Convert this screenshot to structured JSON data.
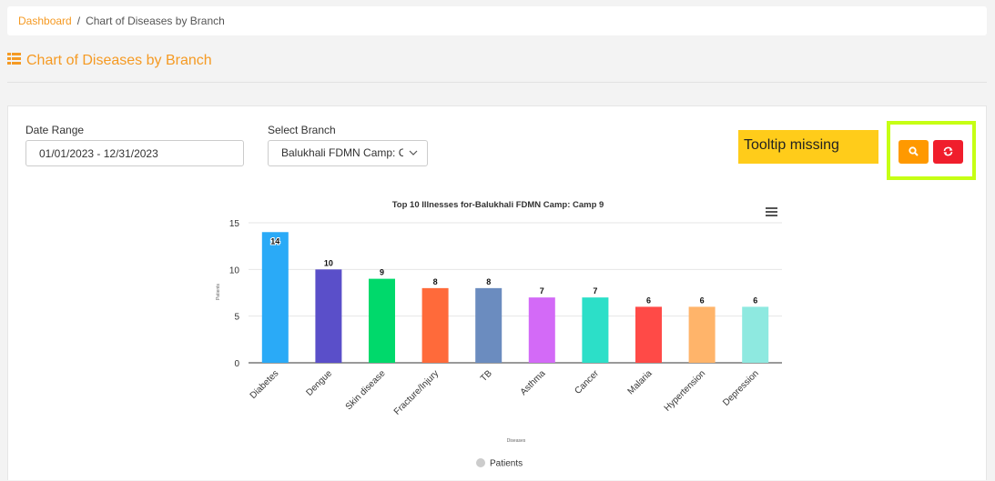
{
  "breadcrumb": {
    "home": "Dashboard",
    "separator": "/",
    "current": "Chart of Diseases by Branch"
  },
  "page_title": "Chart of Diseases by Branch",
  "filters": {
    "date_range_label": "Date Range",
    "date_range_value": "01/01/2023 - 12/31/2023",
    "branch_label": "Select Branch",
    "branch_value": "Balukhali FDMN Camp: Ca"
  },
  "annotation": {
    "text": "Tooltip missing"
  },
  "icons": {
    "title": "table-list-icon",
    "search": "search-icon",
    "reset": "refresh-icon",
    "menu": "hamburger-menu-icon",
    "select": "chevron-down-icon"
  },
  "colors": {
    "accent": "#f59a23",
    "search_button": "#ff9900",
    "reset_button": "#f01e2c",
    "annotation": "#ffcc1a",
    "highlight": "#c6ff14"
  },
  "chart_data": {
    "type": "bar",
    "title": "Top 10 Illnesses for-Balukhali FDMN Camp: Camp 9",
    "xlabel": "Diseases",
    "ylabel": "Patients",
    "categories": [
      "Diabetes",
      "Dengue",
      "Skin disease",
      "Fracture/Injury",
      "TB",
      "Asthma",
      "Cancer",
      "Malaria",
      "Hypertension",
      "Depression"
    ],
    "series": [
      {
        "name": "Patients",
        "values": [
          14,
          10,
          9,
          8,
          8,
          7,
          7,
          6,
          6,
          6
        ]
      }
    ],
    "colors": [
      "#2aaaf7",
      "#5a4fc9",
      "#00d96b",
      "#ff6a3a",
      "#6b8cbf",
      "#d36af7",
      "#2cdfc8",
      "#ff4a47",
      "#ffb46a",
      "#8ee9e0"
    ],
    "yticks": [
      0,
      5,
      10,
      15
    ],
    "ylim": [
      0,
      15
    ],
    "grid": true,
    "legend": "bottom-center"
  }
}
